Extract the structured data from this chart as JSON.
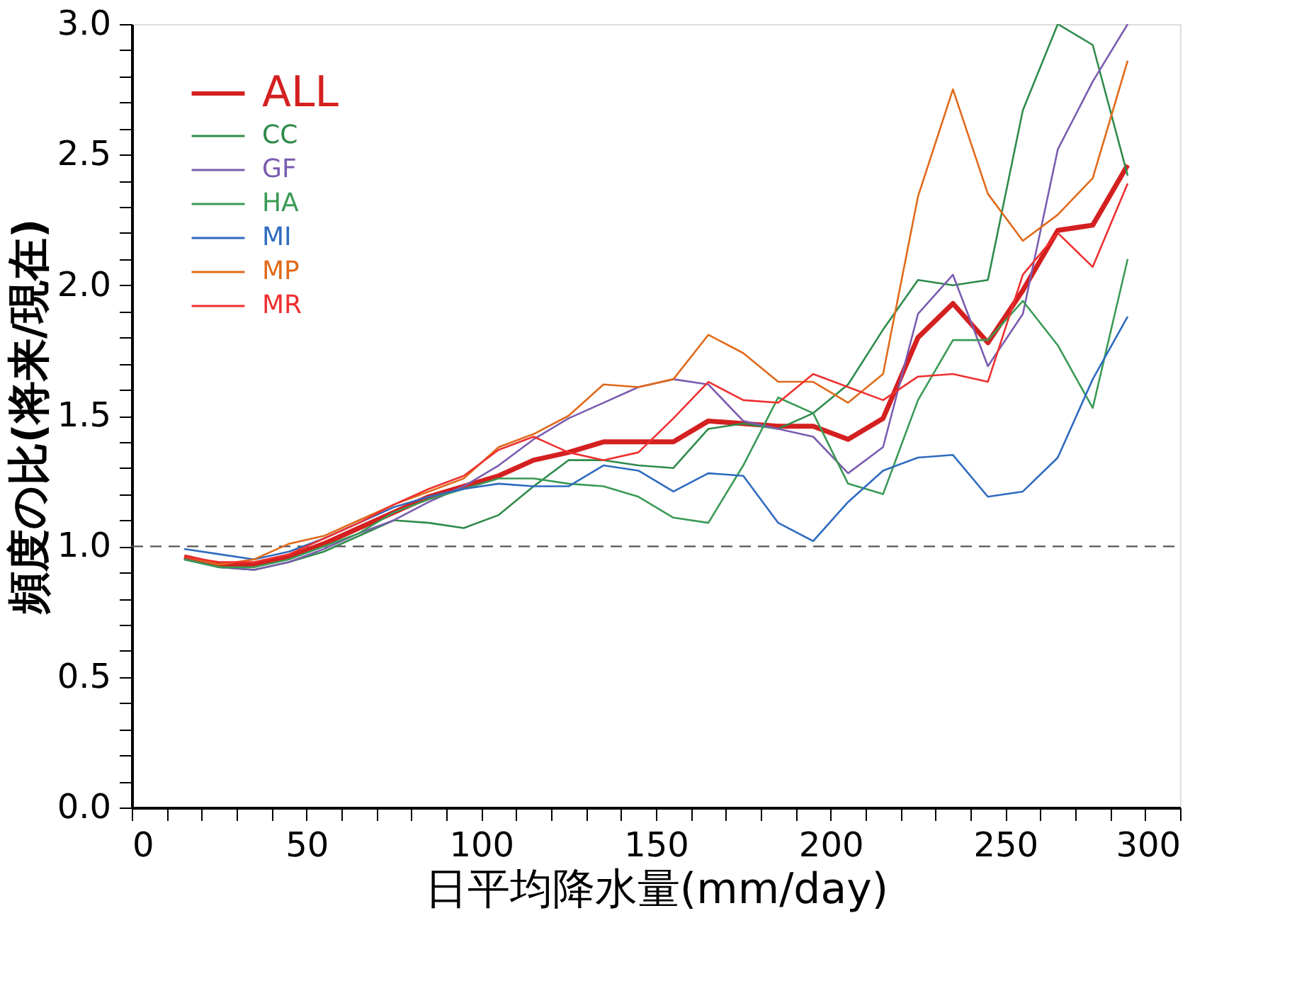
{
  "chart_data": {
    "type": "line",
    "xlabel": "日平均降水量(mm/day)",
    "ylabel": "頻度の比(将来/現在)",
    "x": [
      15,
      25,
      35,
      45,
      55,
      65,
      75,
      85,
      95,
      105,
      115,
      125,
      135,
      145,
      155,
      165,
      175,
      185,
      195,
      205,
      215,
      225,
      235,
      245,
      255,
      265,
      275,
      285
    ],
    "xlim": [
      0,
      300
    ],
    "ylim": [
      0,
      3.0
    ],
    "xticks": [
      0,
      {
        "value": 10,
        "label": null
      },
      {
        "value": 20,
        "label": null
      },
      {
        "value": 30,
        "label": null
      },
      {
        "value": 40,
        "label": null
      },
      50,
      {
        "value": 60,
        "label": null
      },
      {
        "value": 70,
        "label": null
      },
      {
        "value": 80,
        "label": null
      },
      {
        "value": 90,
        "label": null
      },
      100,
      {
        "value": 110,
        "label": null
      },
      {
        "value": 120,
        "label": null
      },
      {
        "value": 130,
        "label": null
      },
      {
        "value": 140,
        "label": null
      },
      150,
      {
        "value": 160,
        "label": null
      },
      {
        "value": 170,
        "label": null
      },
      {
        "value": 180,
        "label": null
      },
      {
        "value": 190,
        "label": null
      },
      200,
      {
        "value": 210,
        "label": null
      },
      {
        "value": 220,
        "label": null
      },
      {
        "value": 230,
        "label": null
      },
      {
        "value": 240,
        "label": null
      },
      250,
      {
        "value": 260,
        "label": null
      },
      {
        "value": 270,
        "label": null
      },
      {
        "value": 280,
        "label": null
      },
      {
        "value": 290,
        "label": null
      },
      300
    ],
    "yticks": [
      {
        "value": 0,
        "label": "0.0"
      },
      {
        "value": 0.1,
        "label": null
      },
      {
        "value": 0.2,
        "label": null
      },
      {
        "value": 0.3,
        "label": null
      },
      {
        "value": 0.4,
        "label": null
      },
      0.5,
      {
        "value": 0.6,
        "label": null
      },
      {
        "value": 0.7,
        "label": null
      },
      {
        "value": 0.8,
        "label": null
      },
      {
        "value": 0.9,
        "label": null
      },
      {
        "value": 1,
        "label": "1.0"
      },
      {
        "value": 1.1,
        "label": null
      },
      {
        "value": 1.2,
        "label": null
      },
      {
        "value": 1.3,
        "label": null
      },
      {
        "value": 1.4,
        "label": null
      },
      1.5,
      {
        "value": 1.6,
        "label": null
      },
      {
        "value": 1.7,
        "label": null
      },
      {
        "value": 1.8,
        "label": null
      },
      {
        "value": 1.9,
        "label": null
      },
      {
        "value": 2,
        "label": "2.0"
      },
      {
        "value": 2.1,
        "label": null
      },
      {
        "value": 2.2,
        "label": null
      },
      {
        "value": 2.3,
        "label": null
      },
      {
        "value": 2.4,
        "label": null
      },
      2.5,
      {
        "value": 2.6,
        "label": null
      },
      {
        "value": 2.7,
        "label": null
      },
      {
        "value": 2.8,
        "label": null
      },
      {
        "value": 2.9,
        "label": null
      },
      {
        "value": 3,
        "label": "3.0"
      }
    ],
    "ref_lines": [
      {
        "axis": "y",
        "value": 1.0,
        "color": "#555555",
        "line_style": "dashed"
      }
    ],
    "legend": "top left",
    "grid": false,
    "marker": "none",
    "line_style": "solid",
    "series": [
      {
        "name": "ALL",
        "color": "#d42020",
        "values": [
          0.96,
          0.93,
          0.93,
          0.96,
          1.01,
          1.07,
          1.13,
          1.19,
          1.23,
          1.27,
          1.33,
          1.36,
          1.4,
          1.4,
          1.4,
          1.48,
          1.47,
          1.46,
          1.46,
          1.41,
          1.49,
          1.8,
          1.93,
          1.78,
          1.98,
          2.21,
          2.23,
          2.46
        ]
      },
      {
        "name": "CC",
        "color": "#2e8b4a",
        "values": [
          0.95,
          0.92,
          0.91,
          0.94,
          0.98,
          1.04,
          1.1,
          1.09,
          1.07,
          1.12,
          1.23,
          1.33,
          1.33,
          1.31,
          1.3,
          1.45,
          1.47,
          1.45,
          1.51,
          1.62,
          1.83,
          2.02,
          2.0,
          2.02,
          2.67,
          3.0,
          2.92,
          2.42
        ]
      },
      {
        "name": "GF",
        "color": "#7a5cb0",
        "values": [
          0.95,
          0.92,
          0.91,
          0.94,
          0.99,
          1.05,
          1.1,
          1.17,
          1.23,
          1.31,
          1.41,
          1.49,
          1.55,
          1.61,
          1.64,
          1.62,
          1.48,
          1.45,
          1.42,
          1.28,
          1.38,
          1.89,
          2.04,
          1.69,
          1.89,
          2.52,
          2.78,
          3.0
        ]
      },
      {
        "name": "HA",
        "color": "#3a9a55",
        "values": [
          0.95,
          0.92,
          0.92,
          0.95,
          1.0,
          1.05,
          1.13,
          1.18,
          1.22,
          1.26,
          1.26,
          1.24,
          1.23,
          1.19,
          1.11,
          1.09,
          1.31,
          1.57,
          1.51,
          1.24,
          1.2,
          1.56,
          1.79,
          1.79,
          1.94,
          1.77,
          1.53,
          2.1
        ]
      },
      {
        "name": "MI",
        "color": "#2f6bbf",
        "values": [
          0.99,
          0.97,
          0.95,
          0.98,
          1.03,
          1.09,
          1.15,
          1.19,
          1.22,
          1.24,
          1.23,
          1.23,
          1.31,
          1.29,
          1.21,
          1.28,
          1.27,
          1.09,
          1.02,
          1.17,
          1.29,
          1.34,
          1.35,
          1.19,
          1.21,
          1.34,
          1.64,
          1.88
        ]
      },
      {
        "name": "MP",
        "color": "#e06a1a",
        "values": [
          0.96,
          0.93,
          0.95,
          1.01,
          1.04,
          1.1,
          1.16,
          1.21,
          1.26,
          1.38,
          1.43,
          1.5,
          1.62,
          1.61,
          1.64,
          1.81,
          1.74,
          1.63,
          1.63,
          1.55,
          1.66,
          2.34,
          2.75,
          2.35,
          2.17,
          2.27,
          2.41,
          2.86
        ]
      },
      {
        "name": "MR",
        "color": "#ee3030",
        "values": [
          0.96,
          0.94,
          0.94,
          0.97,
          1.03,
          1.09,
          1.16,
          1.22,
          1.27,
          1.37,
          1.42,
          1.36,
          1.33,
          1.36,
          1.49,
          1.63,
          1.56,
          1.55,
          1.66,
          1.61,
          1.56,
          1.65,
          1.66,
          1.63,
          2.04,
          2.2,
          2.07,
          2.39
        ]
      }
    ]
  }
}
